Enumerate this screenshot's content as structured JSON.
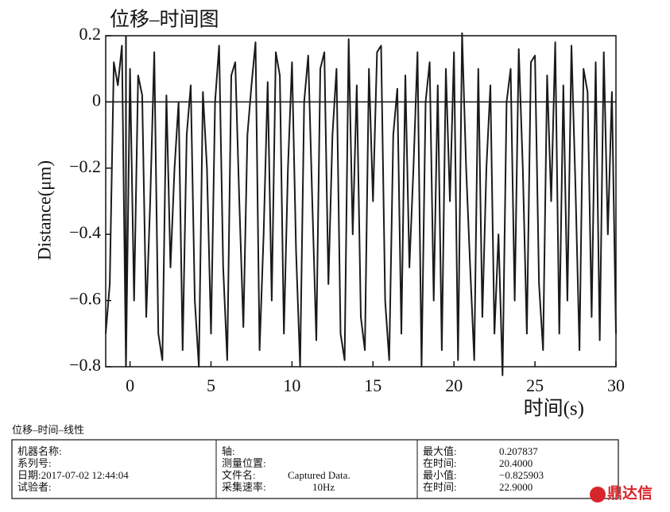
{
  "chart_data": {
    "type": "line",
    "title": "位移–时间图",
    "x_label": "时间(s)",
    "y_label": "Distance(μm)",
    "xlim": [
      -1.5,
      30
    ],
    "ylim": [
      -0.8,
      0.2
    ],
    "xticks": [
      0,
      5,
      10,
      15,
      20,
      25,
      30
    ],
    "yticks": [
      {
        "value": 0.2,
        "label": "0.2"
      },
      0,
      {
        "value": -0.2,
        "label": "−0.2"
      },
      {
        "value": -0.4,
        "label": "−0.4"
      },
      {
        "value": -0.6,
        "label": "−0.6"
      },
      {
        "value": -0.8,
        "label": "−0.8"
      }
    ],
    "zero_line": true,
    "cursor_x": -0.25,
    "color": "#1a1a1a",
    "x": [
      -1.5,
      -1.25,
      -1,
      -0.75,
      -0.5,
      -0.25,
      0,
      0.25,
      0.5,
      0.75,
      1,
      1.25,
      1.5,
      1.75,
      2,
      2.25,
      2.5,
      2.75,
      3,
      3.25,
      3.5,
      3.75,
      4,
      4.25,
      4.5,
      4.75,
      5,
      5.25,
      5.5,
      5.75,
      6,
      6.25,
      6.5,
      6.75,
      7,
      7.25,
      7.5,
      7.75,
      8,
      8.25,
      8.5,
      8.75,
      9,
      9.25,
      9.5,
      9.75,
      10,
      10.25,
      10.5,
      10.75,
      11,
      11.25,
      11.5,
      11.75,
      12,
      12.25,
      12.5,
      12.75,
      13,
      13.25,
      13.5,
      13.75,
      14,
      14.25,
      14.5,
      14.75,
      15,
      15.25,
      15.5,
      15.75,
      16,
      16.25,
      16.5,
      16.75,
      17,
      17.25,
      17.5,
      17.75,
      18,
      18.25,
      18.5,
      18.75,
      19,
      19.25,
      19.5,
      19.75,
      20,
      20.25,
      20.5,
      20.75,
      21,
      21.25,
      21.5,
      21.75,
      22,
      22.25,
      22.5,
      22.75,
      23,
      23.25,
      23.5,
      23.75,
      24,
      24.25,
      24.5,
      24.75,
      25,
      25.25,
      25.5,
      25.75,
      26,
      26.25,
      26.5,
      26.75,
      27,
      27.25,
      27.5,
      27.75,
      28,
      28.25,
      28.5,
      28.75,
      29,
      29.25,
      29.5,
      29.75,
      30
    ],
    "values": [
      -0.7,
      -0.55,
      0.12,
      0.05,
      0.17,
      -0.8,
      0.1,
      -0.6,
      0.08,
      0.02,
      -0.65,
      -0.3,
      0.15,
      -0.7,
      -0.78,
      0.02,
      -0.5,
      -0.2,
      0.0,
      -0.75,
      -0.1,
      0.05,
      -0.6,
      -0.8,
      0.03,
      -0.2,
      -0.7,
      0.0,
      0.17,
      -0.5,
      -0.78,
      0.08,
      0.12,
      -0.3,
      -0.68,
      -0.1,
      0.05,
      0.18,
      -0.75,
      -0.4,
      0.06,
      -0.6,
      0.15,
      0.08,
      -0.7,
      -0.2,
      0.12,
      -0.45,
      -0.8,
      0.0,
      0.14,
      -0.3,
      -0.72,
      0.1,
      0.15,
      -0.55,
      -0.1,
      0.1,
      -0.7,
      -0.78,
      0.19,
      -0.4,
      0.05,
      -0.65,
      -0.75,
      0.1,
      -0.3,
      0.15,
      0.17,
      -0.6,
      -0.78,
      -0.1,
      0.04,
      -0.7,
      0.08,
      -0.5,
      -0.2,
      0.15,
      -0.8,
      0.0,
      0.12,
      -0.6,
      0.05,
      -0.75,
      0.1,
      -0.3,
      0.15,
      -0.78,
      0.208,
      -0.2,
      -0.5,
      -0.78,
      0.1,
      -0.65,
      -0.2,
      0.05,
      -0.7,
      -0.4,
      -0.826,
      0.0,
      0.1,
      -0.6,
      0.16,
      -0.2,
      -0.7,
      0.12,
      0.14,
      -0.55,
      -0.75,
      0.08,
      -0.3,
      0.18,
      -0.7,
      0.05,
      -0.6,
      0.17,
      -0.25,
      -0.75,
      0.1,
      0.03,
      -0.65,
      0.12,
      -0.72,
      0.15,
      -0.4,
      0.03,
      -0.7
    ]
  },
  "table": {
    "title": "位移–时间–线性",
    "columns": [
      [
        "机器名称:",
        "系列号:",
        "日期:2017-07-02 12:44:04",
        "试验者:"
      ],
      [
        "轴:",
        "测量位置:",
        "文件名:",
        "采集速率:"
      ],
      [
        "最大值:",
        "在时间:",
        "最小值:",
        "在时间:"
      ]
    ],
    "column_values": [
      [],
      [
        "",
        "",
        "Captured Data.",
        "10Hz"
      ],
      [
        "0.207837",
        "20.4000",
        "−0.825903",
        "22.9000"
      ]
    ]
  },
  "watermark": "鼎达信"
}
